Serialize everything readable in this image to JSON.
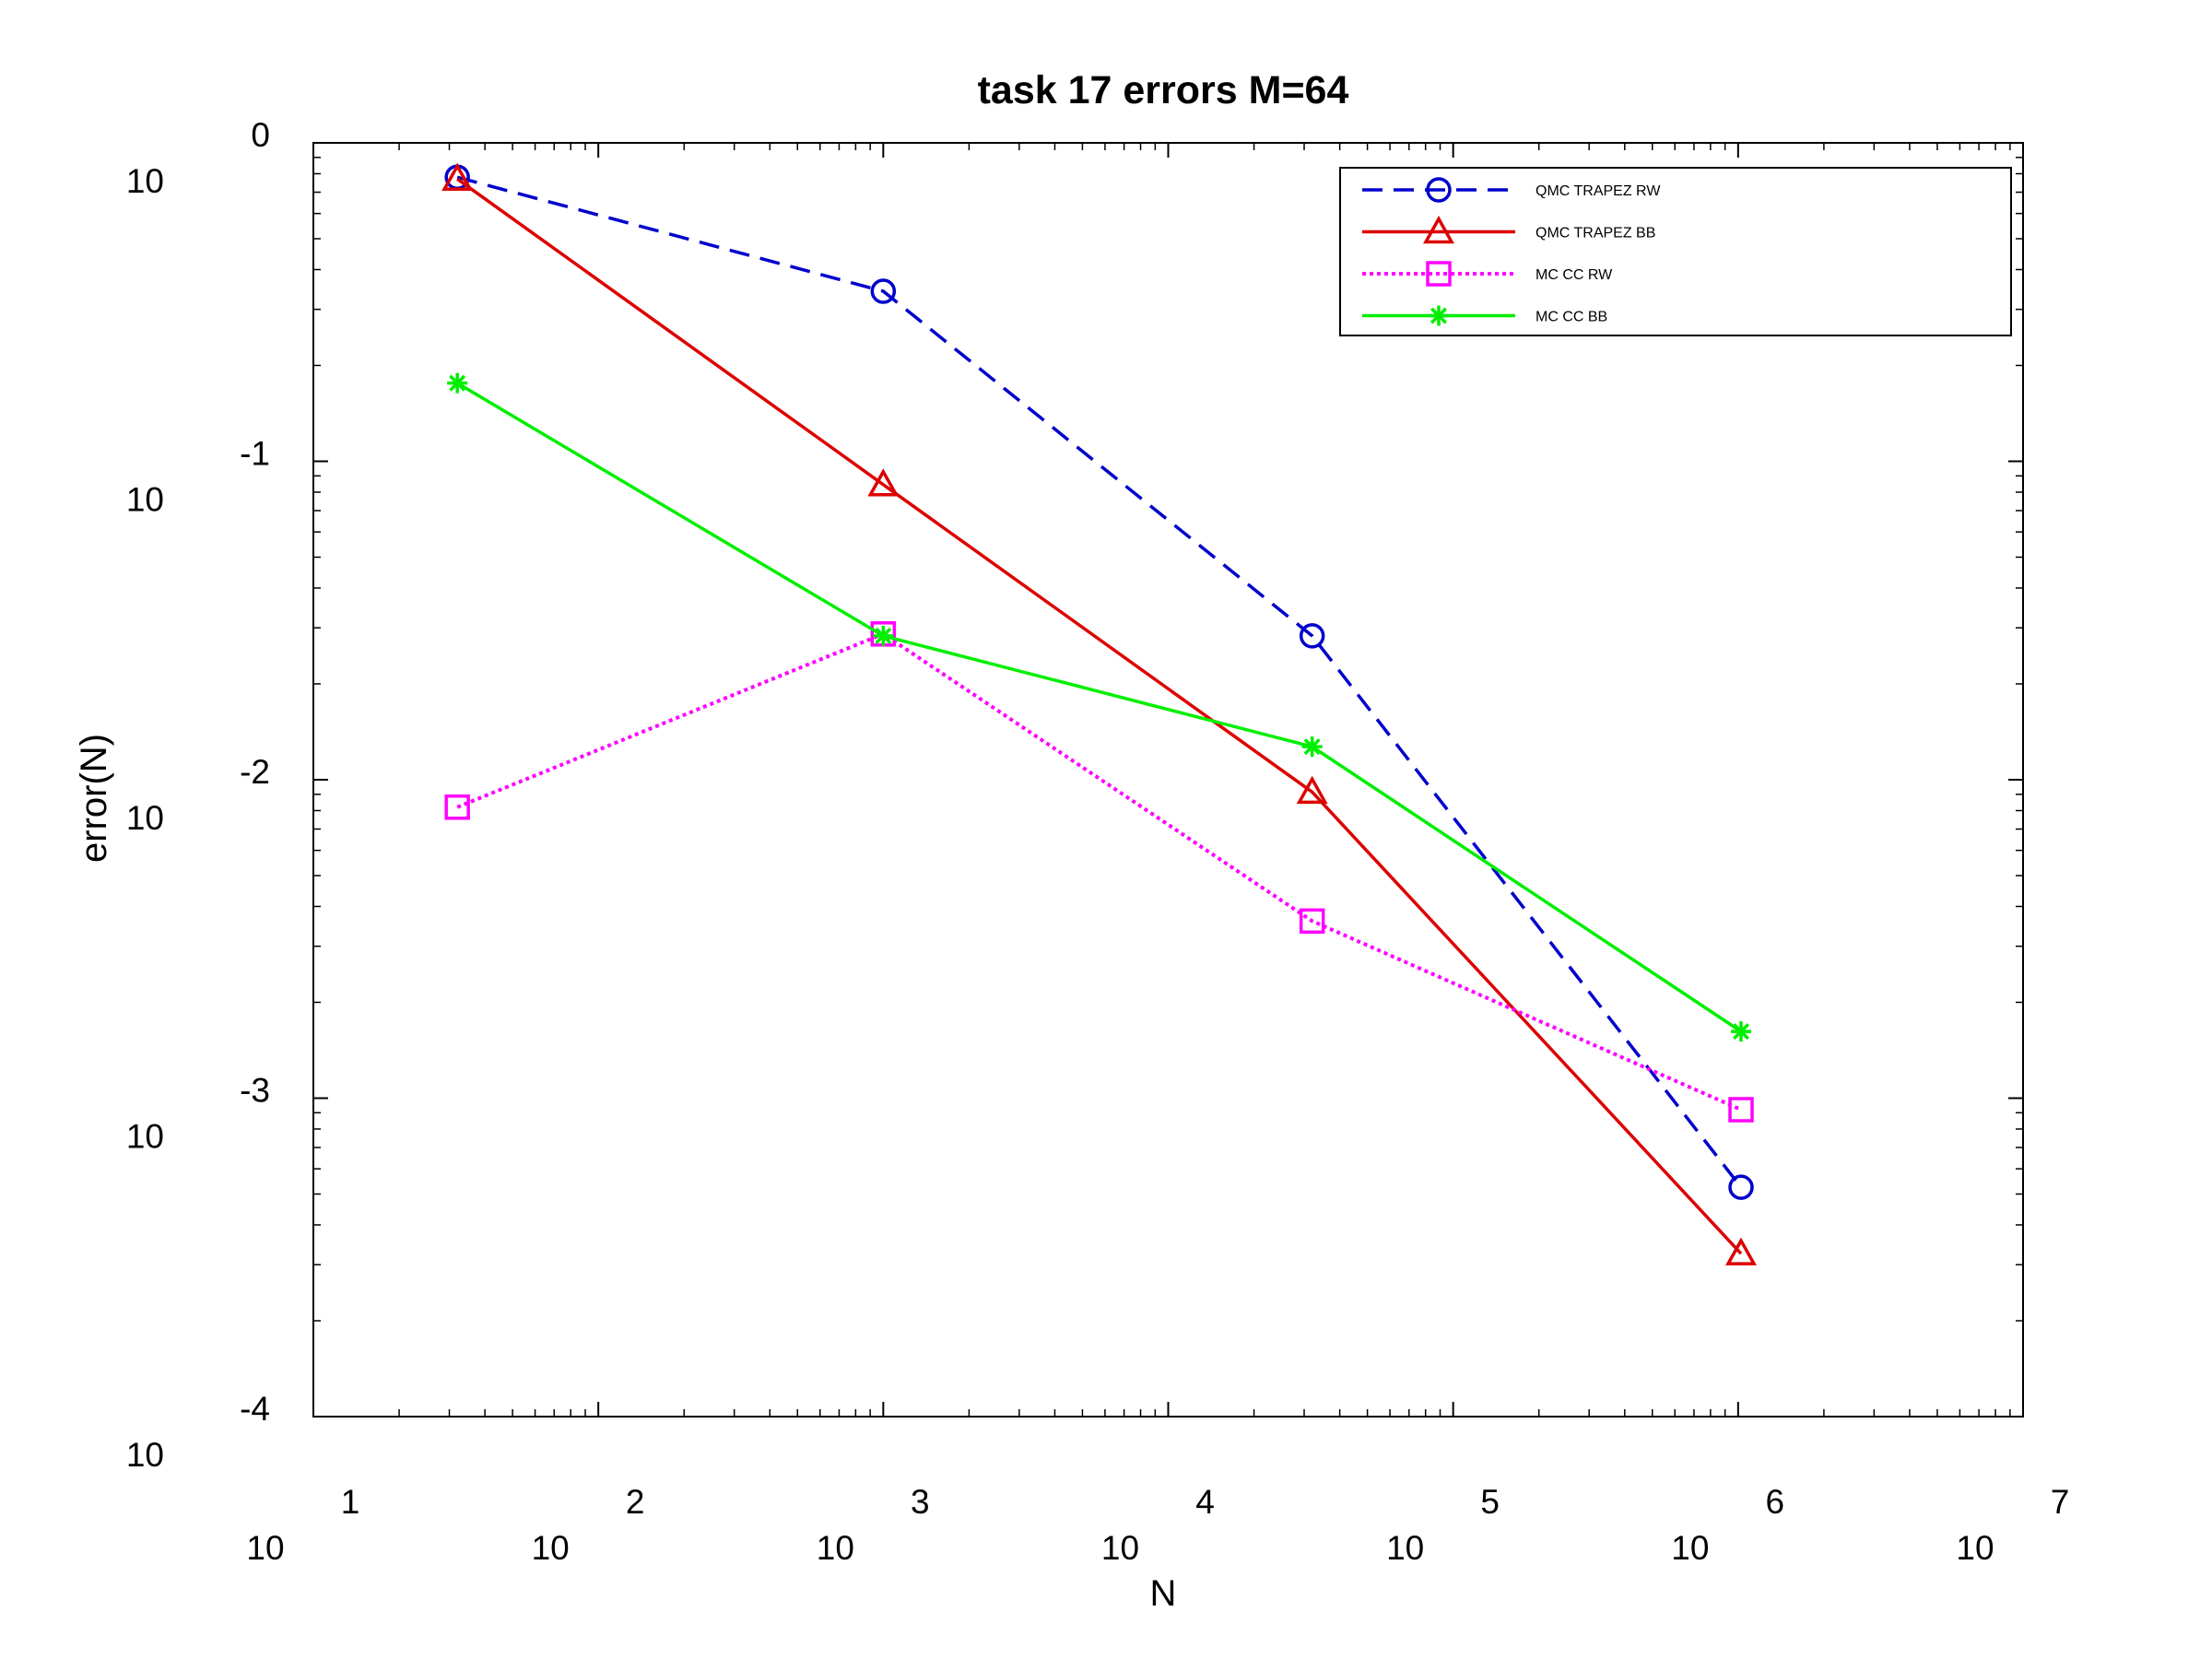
{
  "chart_data": {
    "type": "line",
    "title": "task 17 errors M=64",
    "xlabel": "N",
    "ylabel": "error(N)",
    "xscale": "log",
    "yscale": "log",
    "xlim": [
      10,
      10000000
    ],
    "ylim": [
      0.0001,
      1
    ],
    "x_tick_labels": [
      {
        "base": "10",
        "exp": "1"
      },
      {
        "base": "10",
        "exp": "2"
      },
      {
        "base": "10",
        "exp": "3"
      },
      {
        "base": "10",
        "exp": "4"
      },
      {
        "base": "10",
        "exp": "5"
      },
      {
        "base": "10",
        "exp": "6"
      },
      {
        "base": "10",
        "exp": "7"
      }
    ],
    "y_tick_labels": [
      {
        "base": "10",
        "exp": "0"
      },
      {
        "base": "10",
        "exp": "-1"
      },
      {
        "base": "10",
        "exp": "-2"
      },
      {
        "base": "10",
        "exp": "-3"
      },
      {
        "base": "10",
        "exp": "-4"
      }
    ],
    "grid": false,
    "legend_position": "top-right",
    "x": [
      32,
      1000,
      32000,
      1024000
    ],
    "series": [
      {
        "name": "QMC TRAPEZ RW",
        "color": "#0000cc",
        "style": "dashed",
        "marker": "circle",
        "values": [
          0.78,
          0.342,
          0.0283,
          0.000525
        ]
      },
      {
        "name": "QMC TRAPEZ BB",
        "color": "#dd0000",
        "style": "solid",
        "marker": "triangle",
        "values": [
          0.77,
          0.0845,
          0.00915,
          0.000325
        ]
      },
      {
        "name": "MC CC RW",
        "color": "#ff00ff",
        "style": "dotted",
        "marker": "square",
        "values": [
          0.0082,
          0.0287,
          0.0036,
          0.00092
        ]
      },
      {
        "name": "MC CC BB",
        "color": "#00ee00",
        "style": "solid",
        "marker": "star",
        "values": [
          0.176,
          0.0283,
          0.0127,
          0.00162
        ]
      }
    ]
  }
}
